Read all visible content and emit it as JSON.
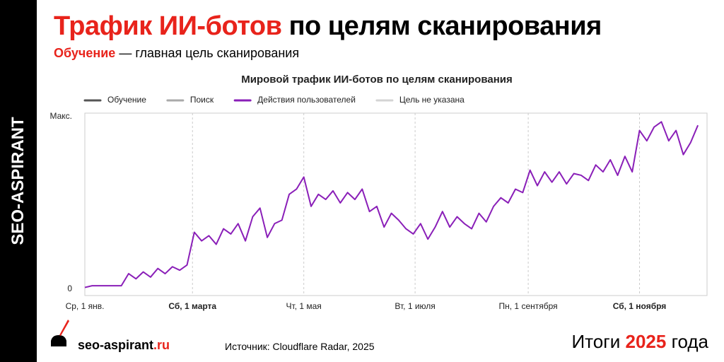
{
  "header": {
    "title_accent": "Трафик ИИ-ботов",
    "title_rest": "по целям сканирования",
    "subtitle_accent": "Обучение",
    "subtitle_rest": "— главная цель сканирования"
  },
  "side_label": "SEO-ASPIRANT",
  "footer": {
    "site_name": "seo-aspirant",
    "site_tld": ".ru",
    "source": "Источник: Cloudflare Radar, 2025",
    "summary_prefix": "Итоги",
    "summary_year": "2025",
    "summary_suffix": "года"
  },
  "chart_data": {
    "type": "line",
    "title": "Мировой трафик ИИ-ботов по целям сканирования",
    "series": [
      {
        "name": "Обучение",
        "color": "#555555"
      },
      {
        "name": "Поиск",
        "color": "#aaaaaa"
      },
      {
        "name": "Действия пользователей",
        "color": "#8a1fb8",
        "x": [
          0,
          4,
          8,
          12,
          16,
          20,
          24,
          28,
          32,
          36,
          40,
          44,
          48,
          52,
          56,
          60,
          64,
          68,
          72,
          76,
          80,
          84,
          88,
          92,
          96,
          100,
          104,
          108,
          112,
          116,
          120,
          124,
          128,
          132,
          136,
          140,
          144,
          148,
          152,
          156,
          160,
          164,
          168,
          172,
          176,
          180,
          184,
          188,
          192,
          196,
          200,
          204,
          208,
          212,
          216,
          220,
          224,
          228,
          232,
          236,
          240,
          244,
          248,
          252,
          256,
          260,
          264,
          268,
          272,
          276,
          280,
          284,
          288,
          292,
          296,
          300,
          304,
          308,
          312,
          316,
          320,
          324,
          328,
          332,
          336
        ],
        "values": [
          1,
          2,
          2,
          2,
          2,
          2,
          9,
          6,
          10,
          7,
          12,
          9,
          13,
          11,
          14,
          33,
          28,
          31,
          26,
          35,
          32,
          38,
          28,
          42,
          47,
          30,
          38,
          40,
          55,
          58,
          65,
          48,
          55,
          52,
          57,
          50,
          56,
          52,
          58,
          45,
          48,
          36,
          44,
          40,
          35,
          32,
          38,
          29,
          36,
          45,
          36,
          42,
          38,
          35,
          44,
          39,
          48,
          53,
          50,
          58,
          56,
          69,
          60,
          68,
          62,
          68,
          61,
          67,
          66,
          63,
          72,
          68,
          75,
          66,
          77,
          68,
          92,
          86,
          94,
          97,
          86,
          92,
          78,
          85,
          95
        ]
      },
      {
        "name": "Цель не указана",
        "color": "#d4d4d4"
      }
    ],
    "xlim": [
      0,
      341
    ],
    "xticks": [
      {
        "value": 0,
        "label": "Ср, 1 янв."
      },
      {
        "value": 59,
        "label": "Сб, 1 марта",
        "bold": true
      },
      {
        "value": 120,
        "label": "Чт, 1 мая"
      },
      {
        "value": 181,
        "label": "Вт, 1 июля"
      },
      {
        "value": 243,
        "label": "Пн, 1 сентября"
      },
      {
        "value": 304,
        "label": "Сб, 1 ноября",
        "bold": true
      }
    ],
    "ylim": [
      0,
      100
    ],
    "yticks": [
      0,
      {
        "value": 100,
        "label": "Макс."
      }
    ],
    "grid": true
  }
}
